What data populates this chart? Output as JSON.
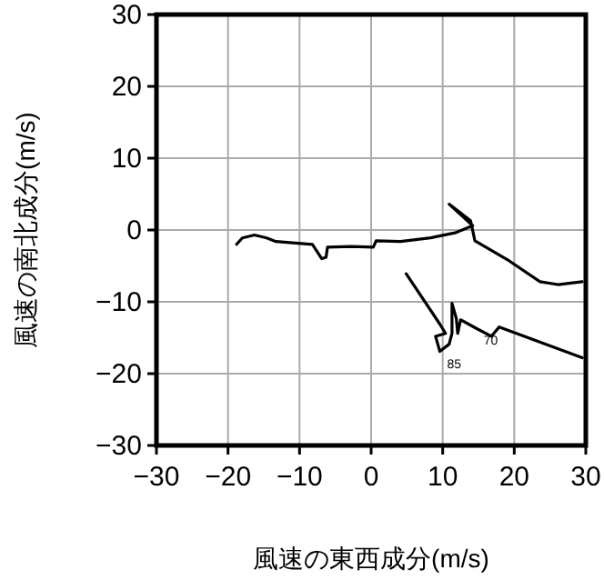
{
  "chart_data": {
    "type": "line",
    "xlabel": "風速の東西成分(m/s)",
    "ylabel": "風速の南北成分(m/s)",
    "xlim": [
      -30,
      30
    ],
    "ylim": [
      -30,
      30
    ],
    "xticks": [
      -30,
      -20,
      -10,
      0,
      10,
      20,
      30
    ],
    "yticks": [
      -30,
      -20,
      -10,
      0,
      10,
      20,
      30
    ],
    "grid": true,
    "marker": "none",
    "series": [
      {
        "color": "#000000",
        "x": [
          -18.8,
          -18.0,
          -16.3,
          -14.6,
          -13.3,
          -8.2,
          -6.9,
          -6.3,
          -6.1,
          -2.7,
          0.3,
          0.7,
          4.1,
          8.3,
          11.7,
          14.2,
          10.9,
          13.9,
          14.5,
          19.3,
          23.6,
          26.1,
          29.5
        ],
        "values": [
          -2.0,
          -1.1,
          -0.7,
          -1.1,
          -1.6,
          -2.0,
          -4.0,
          -3.8,
          -2.4,
          -2.3,
          -2.4,
          -1.5,
          -1.6,
          -1.1,
          -0.4,
          0.6,
          3.6,
          1.3,
          -1.5,
          -4.3,
          -7.2,
          -7.6,
          -7.2
        ]
      },
      {
        "color": "#000000",
        "x": [
          4.9,
          9.6,
          10.4,
          9.0,
          9.6,
          10.9,
          11.3,
          11.3,
          11.9,
          12.1,
          12.5,
          14.7,
          16.8,
          17.9,
          29.5
        ],
        "values": [
          -6.1,
          -13.1,
          -14.4,
          -14.8,
          -16.9,
          -15.9,
          -14.4,
          -10.2,
          -12.3,
          -14.4,
          -12.5,
          -13.7,
          -14.8,
          -13.5,
          -17.8
        ]
      }
    ],
    "annotations": [
      {
        "text": "70",
        "x": 14.7,
        "y": -13.7
      },
      {
        "text": "85",
        "x": 9.6,
        "y": -16.9
      }
    ]
  }
}
